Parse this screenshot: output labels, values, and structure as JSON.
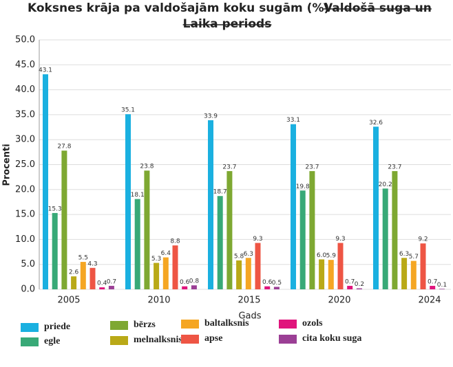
{
  "chart_data": {
    "type": "bar",
    "title": "Koksnes krāja pa valdošajām koku sugām (%) –",
    "title_struck": "Valdošā suga un",
    "title_line2_struck": "Laika periods",
    "x_label": "Gads",
    "y_label": "Procenti",
    "categories": [
      "2005",
      "2010",
      "2015",
      "2020",
      "2024"
    ],
    "ylim": [
      0,
      50
    ],
    "yticks": [
      {
        "value": 0,
        "label": "0.0"
      },
      {
        "value": 5,
        "label": "5.0"
      },
      {
        "value": 10,
        "label": "10.0"
      },
      {
        "value": 15,
        "label": "15.0"
      },
      {
        "value": 20,
        "label": "20.0"
      },
      {
        "value": 25,
        "label": "25.0"
      },
      {
        "value": 30,
        "label": "30.0"
      },
      {
        "value": 35,
        "label": "35.0"
      },
      {
        "value": 40,
        "label": "40.0"
      },
      {
        "value": 45,
        "label": "45.0"
      },
      {
        "value": 50,
        "label": "50.0"
      }
    ],
    "grid": true,
    "series": [
      {
        "name": "priede",
        "color": "#1ab0e0",
        "values": [
          43.1,
          35.1,
          33.9,
          33.1,
          32.6
        ],
        "value_labels": [
          "43.1",
          "35.1",
          "33.9",
          "33.1",
          "32.6"
        ]
      },
      {
        "name": "egle",
        "color": "#38a977",
        "values": [
          15.3,
          18.1,
          18.7,
          19.8,
          20.2
        ],
        "value_labels": [
          "15.3",
          "18.1",
          "18.7",
          "19.8",
          "20.2"
        ]
      },
      {
        "name": "bērzs",
        "color": "#7ea832",
        "values": [
          27.8,
          23.8,
          23.7,
          23.7,
          23.7
        ],
        "value_labels": [
          "27.8",
          "23.8",
          "23.7",
          "23.7",
          "23.7"
        ]
      },
      {
        "name": "melnalksnis",
        "color": "#b9a917",
        "values": [
          2.6,
          5.3,
          5.8,
          6.0,
          6.3
        ],
        "value_labels": [
          "2.6",
          "5.3",
          "5.8",
          "6.0",
          "6.3"
        ]
      },
      {
        "name": "baltalksnis",
        "color": "#f5a623",
        "values": [
          5.5,
          6.4,
          6.3,
          5.9,
          5.7
        ],
        "value_labels": [
          "5.5",
          "6.4",
          "6.3",
          "5.9",
          "5.7"
        ]
      },
      {
        "name": "apse",
        "color": "#ee5544",
        "values": [
          4.3,
          8.8,
          9.3,
          9.3,
          9.2
        ],
        "value_labels": [
          "4.3",
          "8.8",
          "9.3",
          "9.3",
          "9.2"
        ]
      },
      {
        "name": "ozols",
        "color": "#e0147c",
        "values": [
          0.4,
          0.6,
          0.6,
          0.7,
          0.7
        ],
        "value_labels": [
          "0.4",
          "0.6",
          "0.6",
          "0.7",
          "0.7"
        ]
      },
      {
        "name": "cita koku suga",
        "color": "#9b3f95",
        "values": [
          0.7,
          0.8,
          0.5,
          0.2,
          0.1
        ],
        "value_labels": [
          "0.7",
          "0.8",
          "0.5",
          "0.2",
          "0.1"
        ]
      }
    ]
  }
}
